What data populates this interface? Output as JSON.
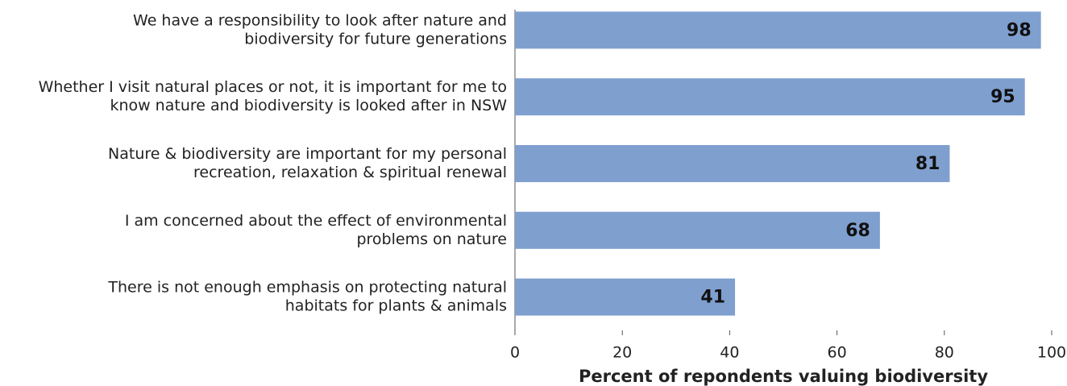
{
  "chart_data": {
    "type": "bar",
    "orientation": "horizontal",
    "categories": [
      [
        "We have a responsibility to look after nature and",
        "biodiversity for future generations"
      ],
      [
        "Whether I visit natural places or not, it is important for me to",
        "know nature and biodiversity is looked after in NSW"
      ],
      [
        "Nature & biodiversity are important for my personal",
        "recreation, relaxation & spiritual renewal"
      ],
      [
        "I am concerned about the effect of environmental",
        "problems on nature"
      ],
      [
        "There is not enough emphasis on protecting natural",
        "habitats for plants & animals"
      ]
    ],
    "values": [
      98,
      95,
      81,
      68,
      41
    ],
    "color": "#7f9fcf",
    "x_label": "Percent of repondents valuing biodiversity",
    "xlim": [
      0,
      100
    ],
    "xticks": [
      0,
      20,
      40,
      60,
      80,
      100
    ]
  }
}
